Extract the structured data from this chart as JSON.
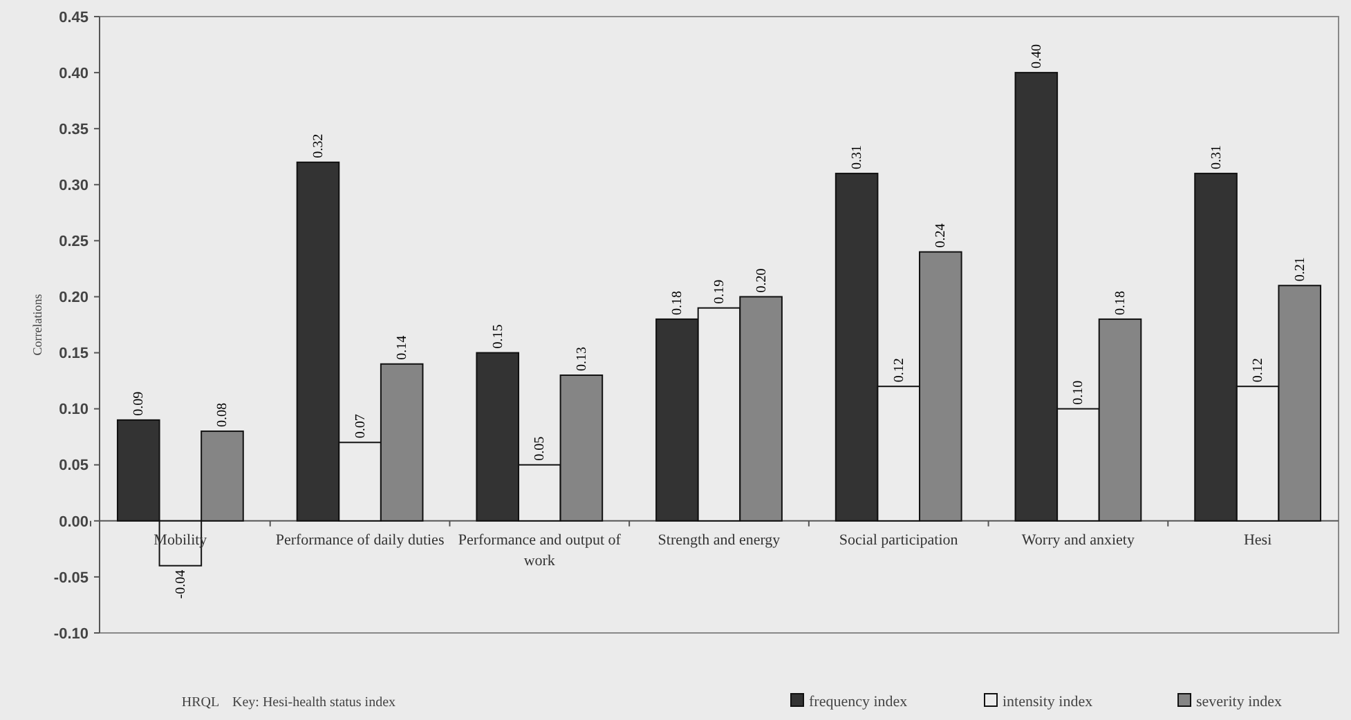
{
  "chart_data": {
    "type": "bar",
    "ylabel": "Correlations",
    "xlabel": "HRQL",
    "annotations": [
      "Key: Hesi-health status index"
    ],
    "categories": [
      "Mobility",
      "Performance of daily duties",
      "Performance and output of work",
      "Strength and energy",
      "Social participation",
      "Worry and anxiety",
      "Hesi"
    ],
    "series": [
      {
        "name": "frequency index",
        "color": "#333333",
        "values": [
          0.09,
          0.32,
          0.15,
          0.18,
          0.31,
          0.4,
          0.31
        ],
        "value_labels": [
          "0.09",
          "0.32",
          "0.15",
          "0.18",
          "0.31",
          "0.40",
          "0.31"
        ]
      },
      {
        "name": "intensity index",
        "color": "#ececec",
        "values": [
          -0.04,
          0.07,
          0.05,
          0.19,
          0.12,
          0.1,
          0.12
        ],
        "value_labels": [
          "-0.04",
          "0.07",
          "0.05",
          "0.19",
          "0.12",
          "0.10",
          "0.12"
        ]
      },
      {
        "name": "severity index",
        "color": "#858585",
        "values": [
          0.08,
          0.14,
          0.13,
          0.2,
          0.24,
          0.18,
          0.21
        ],
        "value_labels": [
          "0.08",
          "0.14",
          "0.13",
          "0.20",
          "0.24",
          "0.18",
          "0.21"
        ]
      }
    ],
    "ylim": [
      -0.1,
      0.45
    ],
    "yticks": [
      "-0.10",
      "-0.05",
      "0.00",
      "0.05",
      "0.10",
      "0.15",
      "0.20",
      "0.25",
      "0.30",
      "0.35",
      "0.40",
      "0.45"
    ],
    "legend": "bottom right",
    "grid": false
  }
}
